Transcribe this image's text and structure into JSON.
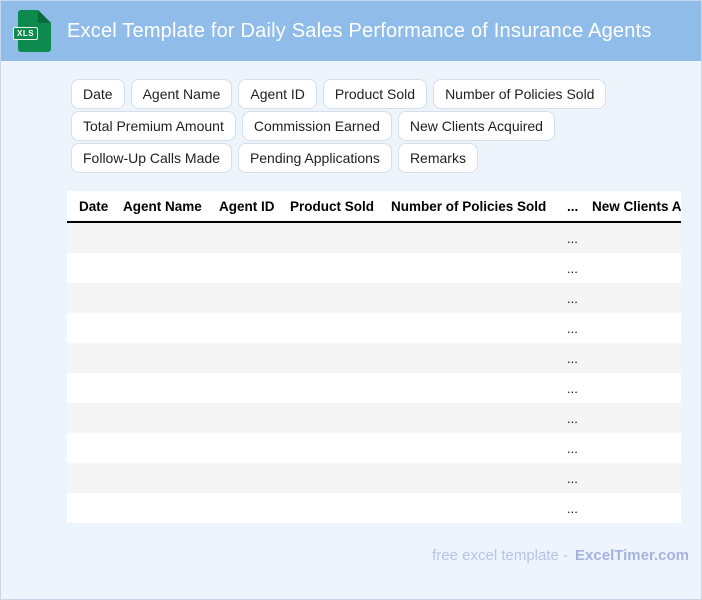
{
  "header": {
    "title": "Excel Template for Daily Sales Performance of Insurance Agents",
    "icon_label": "XLS"
  },
  "chips": [
    "Date",
    "Agent Name",
    "Agent ID",
    "Product Sold",
    "Number of Policies Sold",
    "Total Premium Amount",
    "Commission Earned",
    "New Clients Acquired",
    "Follow-Up Calls Made",
    "Pending Applications",
    "Remarks"
  ],
  "table": {
    "columns": [
      "Date",
      "Agent Name",
      "Agent ID",
      "Product Sold",
      "Number of Policies Sold",
      "...",
      "New Clients Acquired"
    ],
    "rows": [
      [
        "",
        "",
        "",
        "",
        "",
        "...",
        ""
      ],
      [
        "",
        "",
        "",
        "",
        "",
        "...",
        ""
      ],
      [
        "",
        "",
        "",
        "",
        "",
        "...",
        ""
      ],
      [
        "",
        "",
        "",
        "",
        "",
        "...",
        ""
      ],
      [
        "",
        "",
        "",
        "",
        "",
        "...",
        ""
      ],
      [
        "",
        "",
        "",
        "",
        "",
        "...",
        ""
      ],
      [
        "",
        "",
        "",
        "",
        "",
        "...",
        ""
      ],
      [
        "",
        "",
        "",
        "",
        "",
        "...",
        ""
      ],
      [
        "",
        "",
        "",
        "",
        "",
        "...",
        ""
      ],
      [
        "",
        "",
        "",
        "",
        "",
        "...",
        ""
      ]
    ]
  },
  "footer": {
    "text": "free excel template -",
    "brand": "ExcelTimer.com"
  },
  "colors": {
    "header_bg": "#8FBCE9",
    "page_bg": "#EDF4FC",
    "icon_green": "#0E8A4F",
    "icon_fold_green": "#0A6B3D",
    "chip_border": "#D8DEE8",
    "row_stripe": "#F5F5F5",
    "header_border": "#000000",
    "footer_text": "#B7C3EB",
    "footer_brand": "#A5B2DF"
  }
}
